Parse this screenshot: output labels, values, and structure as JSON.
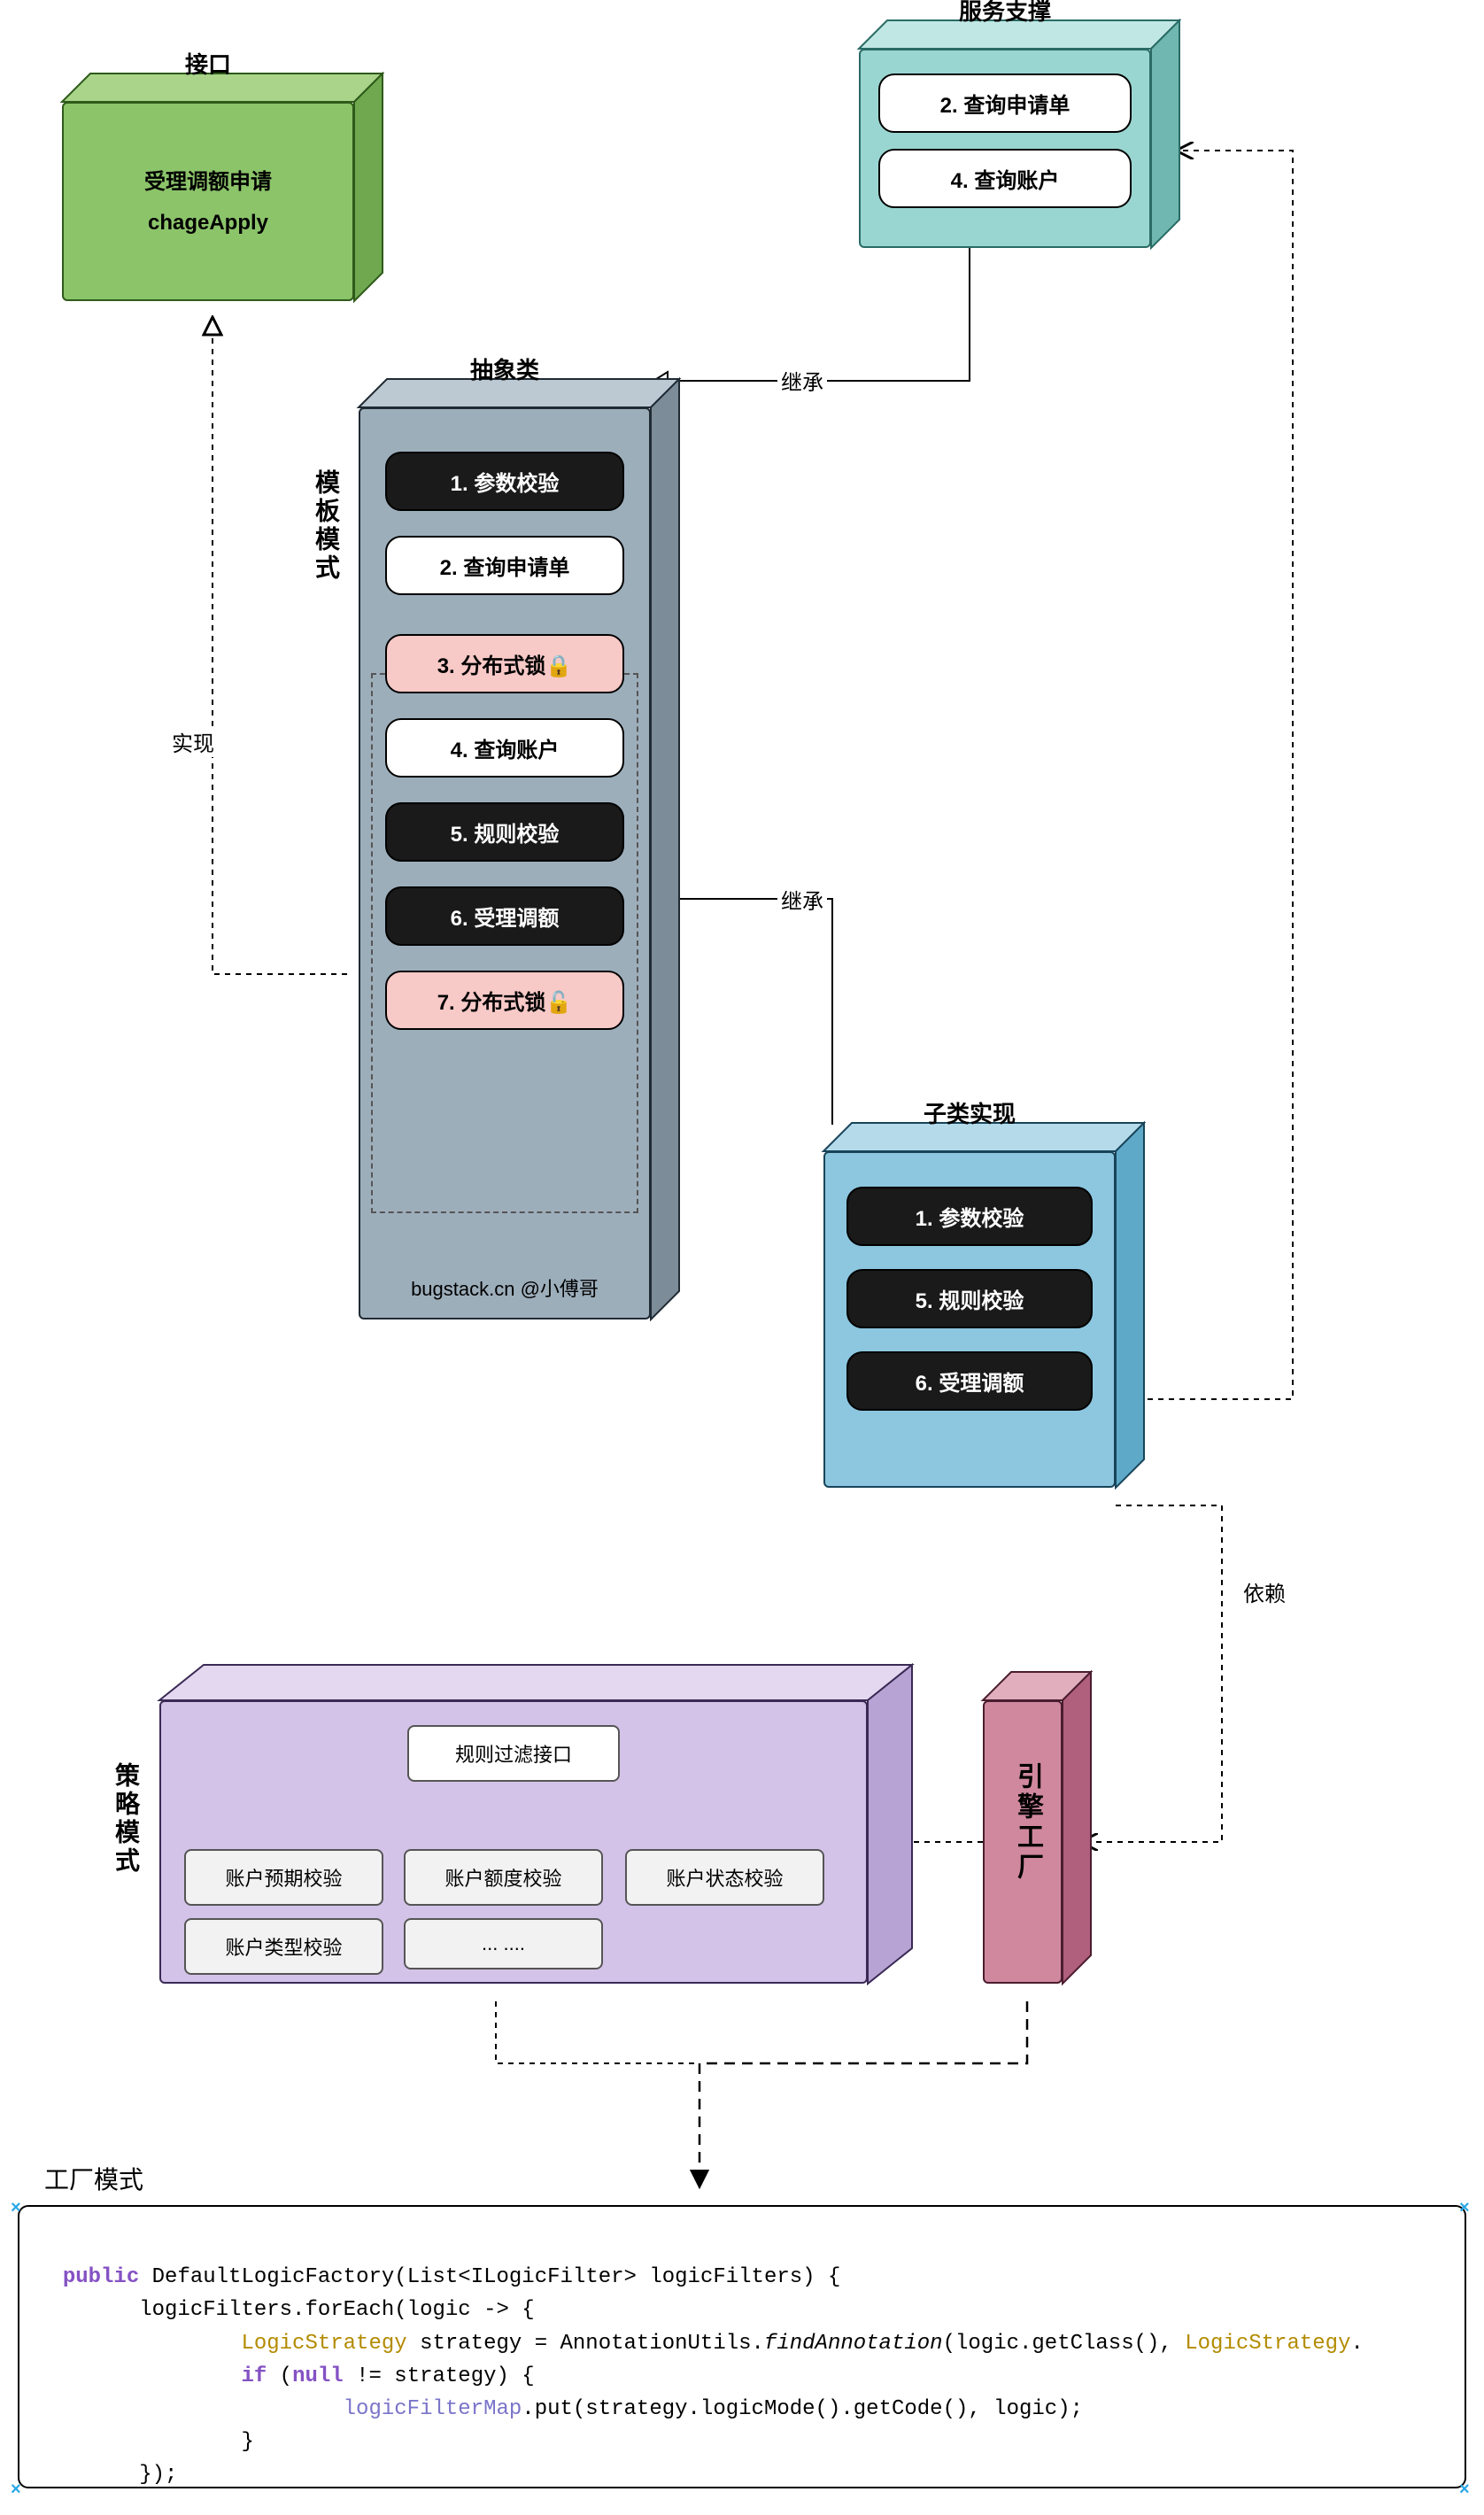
{
  "diagram": {
    "interface_box": {
      "title": "接口",
      "line1": "受理调额申请",
      "line2": "chageApply",
      "colors": {
        "front": "#8cc46a",
        "top": "#a9d48a",
        "side": "#6fa84f",
        "border": "#2e5a1a"
      }
    },
    "service_box": {
      "title": "服务支撑",
      "items": [
        "2. 查询申请单",
        "4. 查询账户"
      ],
      "colors": {
        "front": "#9ad6d1",
        "top": "#c0e7e4",
        "side": "#6fb7b0",
        "border": "#2a6b66"
      }
    },
    "abstract_box": {
      "title": "抽象类",
      "sidebar_label": "模板模式",
      "steps": [
        {
          "text": "1. 参数校验",
          "style": "black"
        },
        {
          "text": "2. 查询申请单",
          "style": "white"
        },
        {
          "text": "3. 分布式锁🔒",
          "style": "pink"
        },
        {
          "text": "4. 查询账户",
          "style": "white"
        },
        {
          "text": "5. 规则校验",
          "style": "black"
        },
        {
          "text": "6. 受理调额",
          "style": "black"
        },
        {
          "text": "7. 分布式锁🔓",
          "style": "pink"
        }
      ],
      "footer": "bugstack.cn @小傅哥",
      "colors": {
        "front": "#9daebb",
        "top": "#bcc9d3",
        "side": "#7c8c99",
        "border": "#1f2a33"
      }
    },
    "subclass_box": {
      "title": "子类实现",
      "items": [
        "1. 参数校验",
        "5. 规则校验",
        "6. 受理调额"
      ],
      "colors": {
        "front": "#8cc6df",
        "top": "#b5dbeb",
        "side": "#5ea9c8",
        "border": "#18445a"
      }
    },
    "strategy_box": {
      "sidebar_label": "策略模式",
      "root": "规则过滤接口",
      "leaves": [
        "账户预期校验",
        "账户额度校验",
        "账户状态校验",
        "账户类型校验",
        "... ...."
      ],
      "colors": {
        "front": "#d4c3e8",
        "top": "#e4d8f1",
        "side": "#b8a4d4",
        "border": "#3a2a55"
      }
    },
    "engine_box": {
      "label": "引擎工厂",
      "colors": {
        "front": "#d0889f",
        "top": "#e0aebd",
        "side": "#b05f7c",
        "border": "#4a1d2e"
      }
    },
    "edges": {
      "implement": "实现",
      "inherit1": "继承",
      "inherit2": "继承",
      "depend": "依赖"
    },
    "factory": {
      "title": "工厂模式",
      "code_tokens": [
        {
          "t": "public ",
          "c": "kw"
        },
        {
          "t": "DefaultLogicFactory(List<ILogicFilter> logicFilters) {\n"
        },
        {
          "t": "        logicFilters.forEach(logic -> {\n"
        },
        {
          "t": "                "
        },
        {
          "t": "LogicStrategy",
          "c": "type"
        },
        {
          "t": " strategy = AnnotationUtils."
        },
        {
          "t": "findAnnotation",
          "c": "fn"
        },
        {
          "t": "(logic.getClass(), "
        },
        {
          "t": "LogicStrategy",
          "c": "type"
        },
        {
          "t": ".\n"
        },
        {
          "t": "                "
        },
        {
          "t": "if ",
          "c": "kw"
        },
        {
          "t": "("
        },
        {
          "t": "null ",
          "c": "kw"
        },
        {
          "t": "!= strategy) {\n"
        },
        {
          "t": "                        "
        },
        {
          "t": "logicFilterMap",
          "c": "field"
        },
        {
          "t": ".put(strategy.logicMode().getCode(), logic);\n"
        },
        {
          "t": "                }\n"
        },
        {
          "t": "        });\n"
        },
        {
          "t": "}"
        }
      ]
    }
  },
  "layout": {
    "depth": 30
  }
}
